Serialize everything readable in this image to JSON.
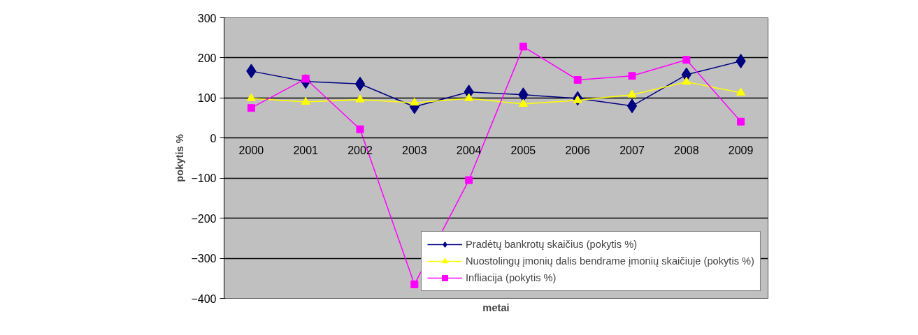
{
  "chart_data": {
    "type": "line",
    "xlabel": "metai",
    "ylabel": "pokytis %",
    "categories": [
      "2000",
      "2001",
      "2002",
      "2003",
      "2004",
      "2005",
      "2006",
      "2007",
      "2008",
      "2009"
    ],
    "series": [
      {
        "name": "Pradėtų bankrotų skaičius (pokytis %)",
        "color": "#000080",
        "marker": "diamond",
        "values": [
          167,
          141,
          135,
          78,
          115,
          108,
          99,
          80,
          158,
          192
        ]
      },
      {
        "name": "Nuostolingų įmonių dalis bendrame įmonių skaičiuje (pokytis %)",
        "color": "#ffff00",
        "marker": "triangle",
        "values": [
          99,
          90,
          96,
          88,
          99,
          85,
          94,
          108,
          140,
          113
        ]
      },
      {
        "name": "Infliacija (pokytis %)",
        "color": "#ff00ff",
        "marker": "square",
        "values": [
          75,
          148,
          22,
          -365,
          -105,
          228,
          145,
          155,
          195,
          41
        ]
      }
    ],
    "ylim": [
      -400,
      300
    ],
    "yticks": [
      -400,
      -300,
      -200,
      -100,
      0,
      100,
      200,
      300
    ],
    "grid": "y",
    "legend": "bottom right",
    "line_style": "solid"
  }
}
